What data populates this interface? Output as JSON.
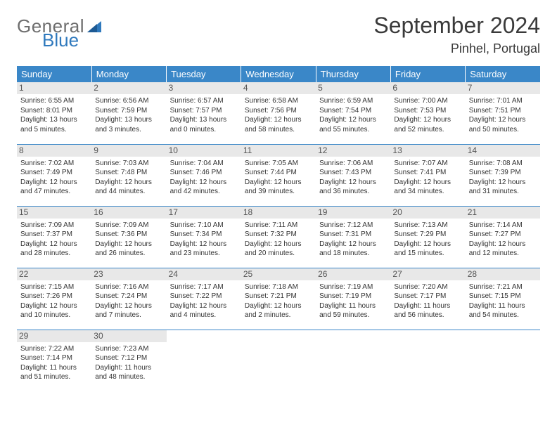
{
  "brand": {
    "line1": "General",
    "line2": "Blue",
    "shape_color": "#2f79bd"
  },
  "header": {
    "month": "September 2024",
    "location": "Pinhel, Portugal"
  },
  "colors": {
    "accent": "#3a87c8",
    "daybg": "#e8e8e8",
    "text": "#333333"
  },
  "weekdays": [
    "Sunday",
    "Monday",
    "Tuesday",
    "Wednesday",
    "Thursday",
    "Friday",
    "Saturday"
  ],
  "days": [
    {
      "n": "1",
      "sr": "6:55 AM",
      "ss": "8:01 PM",
      "dl": "13 hours and 5 minutes."
    },
    {
      "n": "2",
      "sr": "6:56 AM",
      "ss": "7:59 PM",
      "dl": "13 hours and 3 minutes."
    },
    {
      "n": "3",
      "sr": "6:57 AM",
      "ss": "7:57 PM",
      "dl": "13 hours and 0 minutes."
    },
    {
      "n": "4",
      "sr": "6:58 AM",
      "ss": "7:56 PM",
      "dl": "12 hours and 58 minutes."
    },
    {
      "n": "5",
      "sr": "6:59 AM",
      "ss": "7:54 PM",
      "dl": "12 hours and 55 minutes."
    },
    {
      "n": "6",
      "sr": "7:00 AM",
      "ss": "7:53 PM",
      "dl": "12 hours and 52 minutes."
    },
    {
      "n": "7",
      "sr": "7:01 AM",
      "ss": "7:51 PM",
      "dl": "12 hours and 50 minutes."
    },
    {
      "n": "8",
      "sr": "7:02 AM",
      "ss": "7:49 PM",
      "dl": "12 hours and 47 minutes."
    },
    {
      "n": "9",
      "sr": "7:03 AM",
      "ss": "7:48 PM",
      "dl": "12 hours and 44 minutes."
    },
    {
      "n": "10",
      "sr": "7:04 AM",
      "ss": "7:46 PM",
      "dl": "12 hours and 42 minutes."
    },
    {
      "n": "11",
      "sr": "7:05 AM",
      "ss": "7:44 PM",
      "dl": "12 hours and 39 minutes."
    },
    {
      "n": "12",
      "sr": "7:06 AM",
      "ss": "7:43 PM",
      "dl": "12 hours and 36 minutes."
    },
    {
      "n": "13",
      "sr": "7:07 AM",
      "ss": "7:41 PM",
      "dl": "12 hours and 34 minutes."
    },
    {
      "n": "14",
      "sr": "7:08 AM",
      "ss": "7:39 PM",
      "dl": "12 hours and 31 minutes."
    },
    {
      "n": "15",
      "sr": "7:09 AM",
      "ss": "7:37 PM",
      "dl": "12 hours and 28 minutes."
    },
    {
      "n": "16",
      "sr": "7:09 AM",
      "ss": "7:36 PM",
      "dl": "12 hours and 26 minutes."
    },
    {
      "n": "17",
      "sr": "7:10 AM",
      "ss": "7:34 PM",
      "dl": "12 hours and 23 minutes."
    },
    {
      "n": "18",
      "sr": "7:11 AM",
      "ss": "7:32 PM",
      "dl": "12 hours and 20 minutes."
    },
    {
      "n": "19",
      "sr": "7:12 AM",
      "ss": "7:31 PM",
      "dl": "12 hours and 18 minutes."
    },
    {
      "n": "20",
      "sr": "7:13 AM",
      "ss": "7:29 PM",
      "dl": "12 hours and 15 minutes."
    },
    {
      "n": "21",
      "sr": "7:14 AM",
      "ss": "7:27 PM",
      "dl": "12 hours and 12 minutes."
    },
    {
      "n": "22",
      "sr": "7:15 AM",
      "ss": "7:26 PM",
      "dl": "12 hours and 10 minutes."
    },
    {
      "n": "23",
      "sr": "7:16 AM",
      "ss": "7:24 PM",
      "dl": "12 hours and 7 minutes."
    },
    {
      "n": "24",
      "sr": "7:17 AM",
      "ss": "7:22 PM",
      "dl": "12 hours and 4 minutes."
    },
    {
      "n": "25",
      "sr": "7:18 AM",
      "ss": "7:21 PM",
      "dl": "12 hours and 2 minutes."
    },
    {
      "n": "26",
      "sr": "7:19 AM",
      "ss": "7:19 PM",
      "dl": "11 hours and 59 minutes."
    },
    {
      "n": "27",
      "sr": "7:20 AM",
      "ss": "7:17 PM",
      "dl": "11 hours and 56 minutes."
    },
    {
      "n": "28",
      "sr": "7:21 AM",
      "ss": "7:15 PM",
      "dl": "11 hours and 54 minutes."
    },
    {
      "n": "29",
      "sr": "7:22 AM",
      "ss": "7:14 PM",
      "dl": "11 hours and 51 minutes."
    },
    {
      "n": "30",
      "sr": "7:23 AM",
      "ss": "7:12 PM",
      "dl": "11 hours and 48 minutes."
    }
  ],
  "labels": {
    "sunrise": "Sunrise: ",
    "sunset": "Sunset: ",
    "daylight": "Daylight: "
  }
}
